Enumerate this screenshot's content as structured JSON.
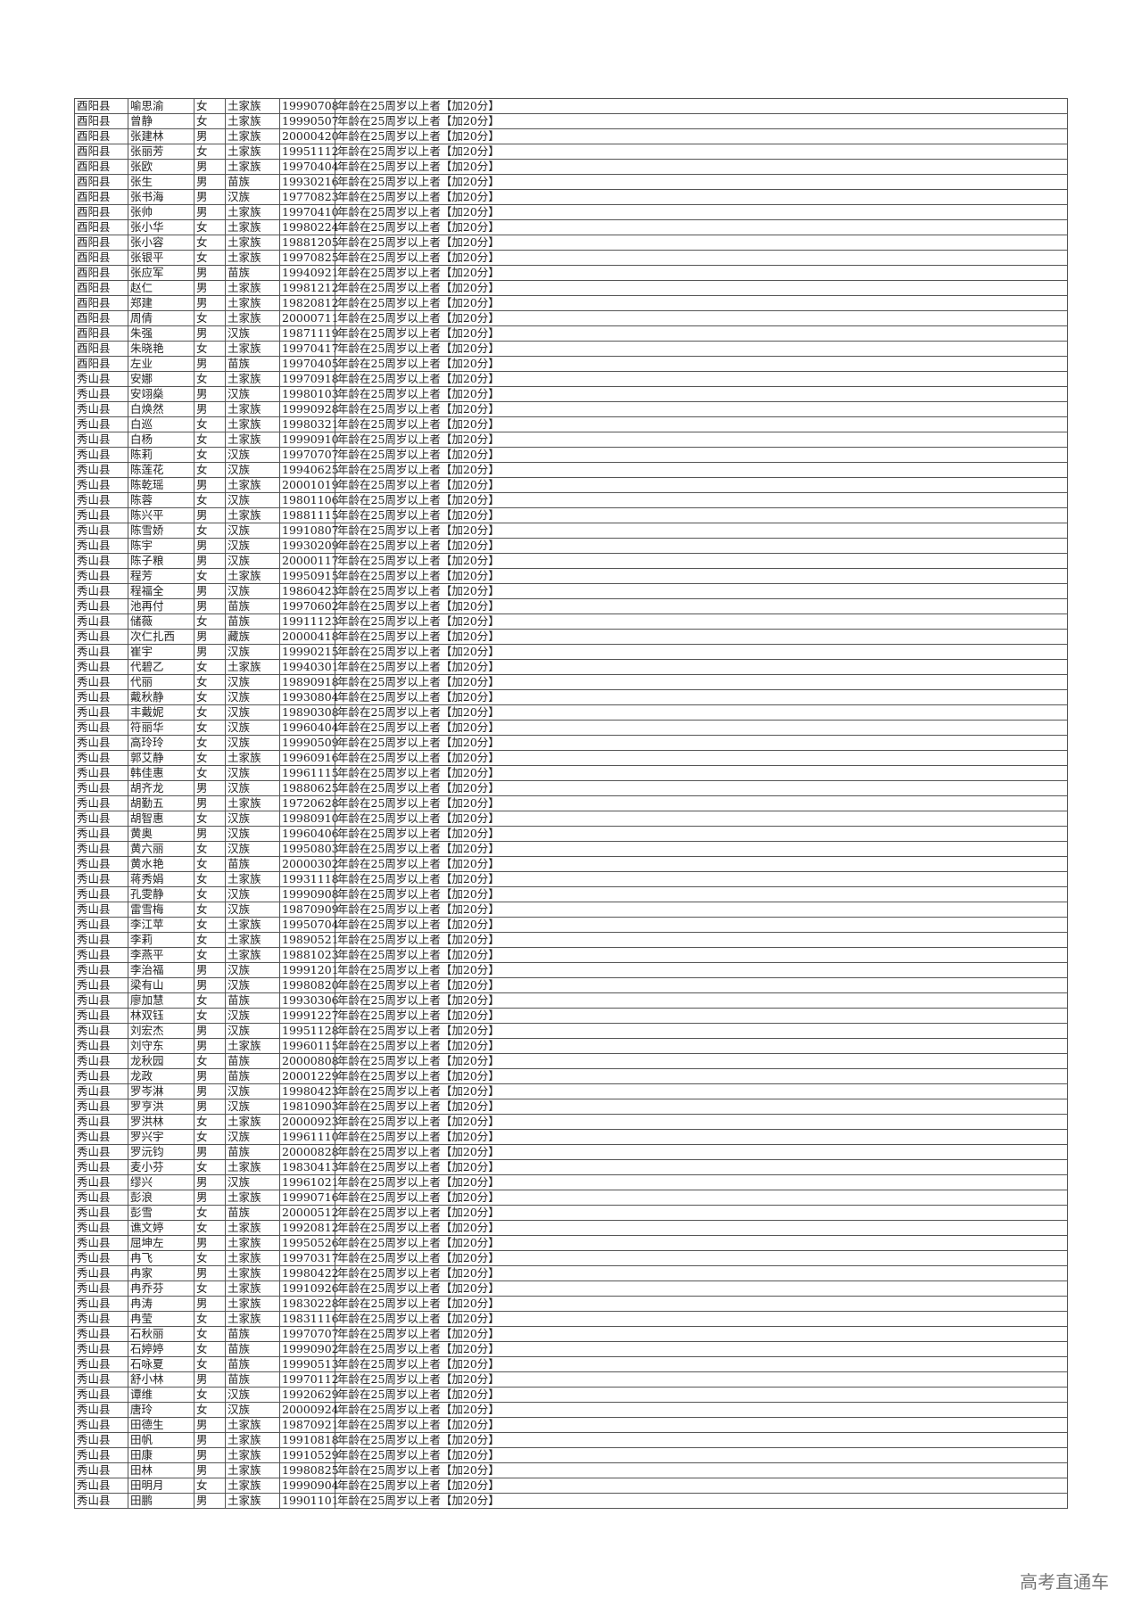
{
  "reason": "年龄在25周岁以上者【加20分】",
  "watermark": "高考直通车",
  "rows": [
    [
      "酉阳县",
      "喻思渝",
      "女",
      "土家族",
      "19990708"
    ],
    [
      "酉阳县",
      "曾静",
      "女",
      "土家族",
      "19990507"
    ],
    [
      "酉阳县",
      "张建林",
      "男",
      "土家族",
      "20000420"
    ],
    [
      "酉阳县",
      "张丽芳",
      "女",
      "土家族",
      "19951112"
    ],
    [
      "酉阳县",
      "张欧",
      "男",
      "土家族",
      "19970404"
    ],
    [
      "酉阳县",
      "张生",
      "男",
      "苗族",
      "19930216"
    ],
    [
      "酉阳县",
      "张书海",
      "男",
      "汉族",
      "19770823"
    ],
    [
      "酉阳县",
      "张帅",
      "男",
      "土家族",
      "19970410"
    ],
    [
      "酉阳县",
      "张小华",
      "女",
      "土家族",
      "19980224"
    ],
    [
      "酉阳县",
      "张小容",
      "女",
      "土家族",
      "19881205"
    ],
    [
      "酉阳县",
      "张银平",
      "女",
      "土家族",
      "19970825"
    ],
    [
      "酉阳县",
      "张应军",
      "男",
      "苗族",
      "19940921"
    ],
    [
      "酉阳县",
      "赵仁",
      "男",
      "土家族",
      "19981212"
    ],
    [
      "酉阳县",
      "郑建",
      "男",
      "土家族",
      "19820812"
    ],
    [
      "酉阳县",
      "周倩",
      "女",
      "土家族",
      "20000711"
    ],
    [
      "酉阳县",
      "朱强",
      "男",
      "汉族",
      "19871119"
    ],
    [
      "酉阳县",
      "朱晓艳",
      "女",
      "土家族",
      "19970417"
    ],
    [
      "酉阳县",
      "左业",
      "男",
      "苗族",
      "19970405"
    ],
    [
      "秀山县",
      "安娜",
      "女",
      "土家族",
      "19970918"
    ],
    [
      "秀山县",
      "安翊燊",
      "男",
      "汉族",
      "19980103"
    ],
    [
      "秀山县",
      "白焕然",
      "男",
      "土家族",
      "19990928"
    ],
    [
      "秀山县",
      "白巡",
      "女",
      "土家族",
      "19980321"
    ],
    [
      "秀山县",
      "白杨",
      "女",
      "土家族",
      "19990910"
    ],
    [
      "秀山县",
      "陈莉",
      "女",
      "汉族",
      "19970707"
    ],
    [
      "秀山县",
      "陈莲花",
      "女",
      "汉族",
      "19940625"
    ],
    [
      "秀山县",
      "陈乾瑶",
      "男",
      "土家族",
      "20001019"
    ],
    [
      "秀山县",
      "陈蓉",
      "女",
      "汉族",
      "19801106"
    ],
    [
      "秀山县",
      "陈兴平",
      "男",
      "土家族",
      "19881115"
    ],
    [
      "秀山县",
      "陈雪娇",
      "女",
      "汉族",
      "19910807"
    ],
    [
      "秀山县",
      "陈宇",
      "男",
      "汉族",
      "19930209"
    ],
    [
      "秀山县",
      "陈子粮",
      "男",
      "汉族",
      "20000117"
    ],
    [
      "秀山县",
      "程芳",
      "女",
      "土家族",
      "19950915"
    ],
    [
      "秀山县",
      "程福全",
      "男",
      "汉族",
      "19860423"
    ],
    [
      "秀山县",
      "池再付",
      "男",
      "苗族",
      "19970602"
    ],
    [
      "秀山县",
      "储薇",
      "女",
      "苗族",
      "19911123"
    ],
    [
      "秀山县",
      "次仁扎西",
      "男",
      "藏族",
      "20000418"
    ],
    [
      "秀山县",
      "崔宇",
      "男",
      "汉族",
      "19990215"
    ],
    [
      "秀山县",
      "代碧乙",
      "女",
      "土家族",
      "19940301"
    ],
    [
      "秀山县",
      "代丽",
      "女",
      "汉族",
      "19890918"
    ],
    [
      "秀山县",
      "戴秋静",
      "女",
      "汉族",
      "19930804"
    ],
    [
      "秀山县",
      "丰戴妮",
      "女",
      "汉族",
      "19890308"
    ],
    [
      "秀山县",
      "符丽华",
      "女",
      "汉族",
      "19960404"
    ],
    [
      "秀山县",
      "高玲玲",
      "女",
      "汉族",
      "19990509"
    ],
    [
      "秀山县",
      "郭艾静",
      "女",
      "土家族",
      "19960916"
    ],
    [
      "秀山县",
      "韩佳惠",
      "女",
      "汉族",
      "19961115"
    ],
    [
      "秀山县",
      "胡齐龙",
      "男",
      "汉族",
      "19880625"
    ],
    [
      "秀山县",
      "胡勤五",
      "男",
      "土家族",
      "19720628"
    ],
    [
      "秀山县",
      "胡智惠",
      "女",
      "汉族",
      "19980910"
    ],
    [
      "秀山县",
      "黄奥",
      "男",
      "汉族",
      "19960406"
    ],
    [
      "秀山县",
      "黄六丽",
      "女",
      "汉族",
      "19950803"
    ],
    [
      "秀山县",
      "黄水艳",
      "女",
      "苗族",
      "20000302"
    ],
    [
      "秀山县",
      "蒋秀娟",
      "女",
      "土家族",
      "19931118"
    ],
    [
      "秀山县",
      "孔雯静",
      "女",
      "汉族",
      "19990908"
    ],
    [
      "秀山县",
      "雷雪梅",
      "女",
      "汉族",
      "19870909"
    ],
    [
      "秀山县",
      "李江苹",
      "女",
      "土家族",
      "19950704"
    ],
    [
      "秀山县",
      "李莉",
      "女",
      "土家族",
      "19890521"
    ],
    [
      "秀山县",
      "李燕平",
      "女",
      "土家族",
      "19881023"
    ],
    [
      "秀山县",
      "李治福",
      "男",
      "汉族",
      "19991201"
    ],
    [
      "秀山县",
      "梁有山",
      "男",
      "汉族",
      "19980820"
    ],
    [
      "秀山县",
      "廖加慧",
      "女",
      "苗族",
      "19930306"
    ],
    [
      "秀山县",
      "林双钰",
      "女",
      "汉族",
      "19991227"
    ],
    [
      "秀山县",
      "刘宏杰",
      "男",
      "汉族",
      "19951128"
    ],
    [
      "秀山县",
      "刘守东",
      "男",
      "土家族",
      "19960115"
    ],
    [
      "秀山县",
      "龙秋园",
      "女",
      "苗族",
      "20000808"
    ],
    [
      "秀山县",
      "龙政",
      "男",
      "苗族",
      "20001229"
    ],
    [
      "秀山县",
      "罗岑淋",
      "男",
      "汉族",
      "19980423"
    ],
    [
      "秀山县",
      "罗亨洪",
      "男",
      "汉族",
      "19810903"
    ],
    [
      "秀山县",
      "罗洪林",
      "女",
      "土家族",
      "20000923"
    ],
    [
      "秀山县",
      "罗兴宇",
      "女",
      "汉族",
      "19961110"
    ],
    [
      "秀山县",
      "罗沅钧",
      "男",
      "苗族",
      "20000828"
    ],
    [
      "秀山县",
      "麦小芬",
      "女",
      "土家族",
      "19830413"
    ],
    [
      "秀山县",
      "缪兴",
      "男",
      "汉族",
      "19961021"
    ],
    [
      "秀山县",
      "彭浪",
      "男",
      "土家族",
      "19990716"
    ],
    [
      "秀山县",
      "彭雪",
      "女",
      "苗族",
      "20000512"
    ],
    [
      "秀山县",
      "谯文婷",
      "女",
      "土家族",
      "19920812"
    ],
    [
      "秀山县",
      "屈坤左",
      "男",
      "土家族",
      "19950526"
    ],
    [
      "秀山县",
      "冉飞",
      "女",
      "土家族",
      "19970317"
    ],
    [
      "秀山县",
      "冉家",
      "男",
      "土家族",
      "19980422"
    ],
    [
      "秀山县",
      "冉乔芬",
      "女",
      "土家族",
      "19910926"
    ],
    [
      "秀山县",
      "冉涛",
      "男",
      "土家族",
      "19830228"
    ],
    [
      "秀山县",
      "冉莹",
      "女",
      "土家族",
      "19831116"
    ],
    [
      "秀山县",
      "石秋丽",
      "女",
      "苗族",
      "19970707"
    ],
    [
      "秀山县",
      "石婷婷",
      "女",
      "苗族",
      "19990902"
    ],
    [
      "秀山县",
      "石咏夏",
      "女",
      "苗族",
      "19990513"
    ],
    [
      "秀山县",
      "舒小林",
      "男",
      "苗族",
      "19970112"
    ],
    [
      "秀山县",
      "谭维",
      "女",
      "汉族",
      "19920629"
    ],
    [
      "秀山县",
      "唐玲",
      "女",
      "汉族",
      "20000924"
    ],
    [
      "秀山县",
      "田德生",
      "男",
      "土家族",
      "19870921"
    ],
    [
      "秀山县",
      "田帆",
      "男",
      "土家族",
      "19910818"
    ],
    [
      "秀山县",
      "田康",
      "男",
      "土家族",
      "19910529"
    ],
    [
      "秀山县",
      "田林",
      "男",
      "土家族",
      "19980825"
    ],
    [
      "秀山县",
      "田明月",
      "女",
      "土家族",
      "19990904"
    ],
    [
      "秀山县",
      "田鹏",
      "男",
      "土家族",
      "19901101"
    ]
  ]
}
